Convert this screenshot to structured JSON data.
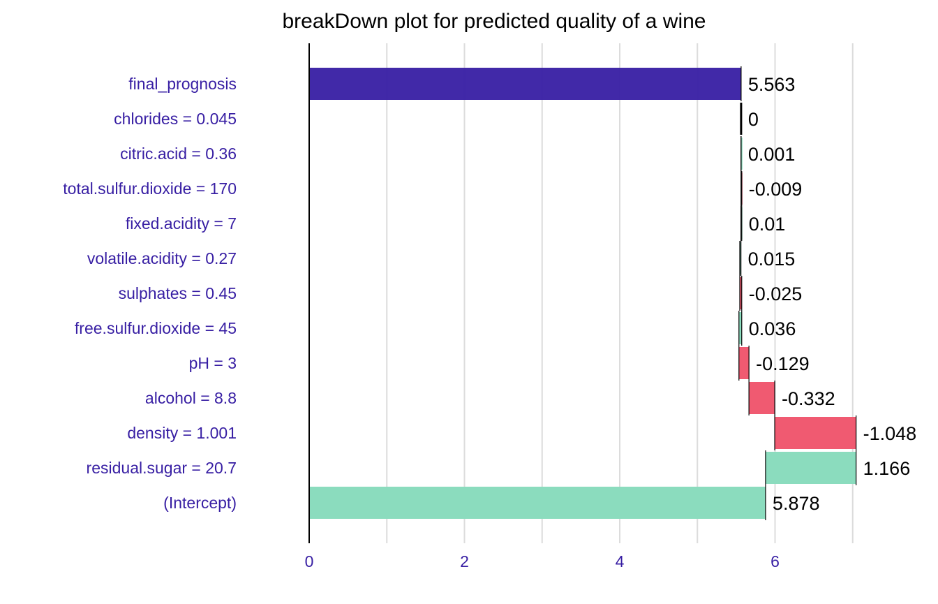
{
  "chart_data": {
    "type": "bar",
    "subtype": "waterfall-breakdown",
    "orientation": "horizontal",
    "title": "breakDown plot for predicted quality of a wine",
    "xlabel": "",
    "ylabel": "",
    "xlim": [
      0,
      7.25
    ],
    "x_ticks": [
      0,
      2,
      4,
      6
    ],
    "grid": true,
    "legend": "none",
    "rows": [
      {
        "label": "final_prognosis",
        "value": 5.563,
        "value_label": "5.563",
        "start": 0,
        "end": 5.563,
        "kind": "final"
      },
      {
        "label": "chlorides = 0.045",
        "value": 0,
        "value_label": "0",
        "start": 5.563,
        "end": 5.563,
        "kind": "zero"
      },
      {
        "label": "citric.acid = 0.36",
        "value": 0.001,
        "value_label": "0.001",
        "start": 5.562,
        "end": 5.563,
        "kind": "positive"
      },
      {
        "label": "total.sulfur.dioxide = 170",
        "value": -0.009,
        "value_label": "-0.009",
        "start": 5.571,
        "end": 5.562,
        "kind": "negative"
      },
      {
        "label": "fixed.acidity = 7",
        "value": 0.01,
        "value_label": "0.01",
        "start": 5.561,
        "end": 5.571,
        "kind": "positive"
      },
      {
        "label": "volatile.acidity = 0.27",
        "value": 0.015,
        "value_label": "0.015",
        "start": 5.546,
        "end": 5.561,
        "kind": "positive"
      },
      {
        "label": "sulphates = 0.45",
        "value": -0.025,
        "value_label": "-0.025",
        "start": 5.571,
        "end": 5.546,
        "kind": "negative"
      },
      {
        "label": "free.sulfur.dioxide = 45",
        "value": 0.036,
        "value_label": "0.036",
        "start": 5.535,
        "end": 5.571,
        "kind": "positive"
      },
      {
        "label": "pH = 3",
        "value": -0.129,
        "value_label": "-0.129",
        "start": 5.664,
        "end": 5.535,
        "kind": "negative"
      },
      {
        "label": "alcohol = 8.8",
        "value": -0.332,
        "value_label": "-0.332",
        "start": 5.996,
        "end": 5.664,
        "kind": "negative"
      },
      {
        "label": "density = 1.001",
        "value": -1.048,
        "value_label": "-1.048",
        "start": 7.044,
        "end": 5.996,
        "kind": "negative"
      },
      {
        "label": "residual.sugar = 20.7",
        "value": 1.166,
        "value_label": "1.166",
        "start": 5.878,
        "end": 7.044,
        "kind": "positive"
      },
      {
        "label": "(Intercept)",
        "value": 5.878,
        "value_label": "5.878",
        "start": 0,
        "end": 5.878,
        "kind": "intercept"
      }
    ],
    "colors": {
      "final": "#371ea3",
      "positive": "#8bdcbe",
      "negative": "#f05a71",
      "zero": "#371ea3",
      "intercept": "#8bdcbe",
      "label_text": "#371ea3",
      "grid": "#dcdcdc",
      "axis": "#000000"
    }
  }
}
